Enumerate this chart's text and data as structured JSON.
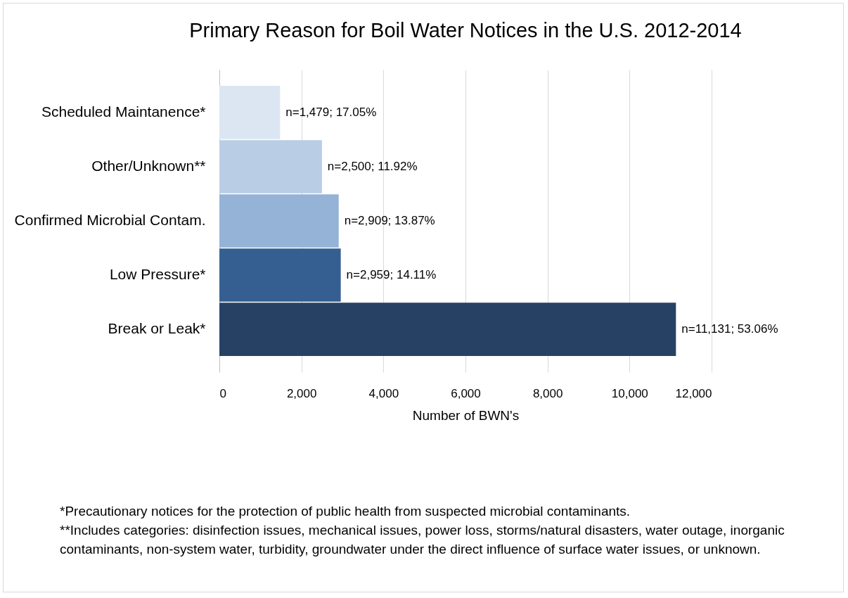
{
  "chart_data": {
    "type": "bar",
    "orientation": "horizontal",
    "title": "Primary Reason for Boil Water Notices in the U.S. 2012-2014",
    "xlabel": "Number of BWN's",
    "categories": [
      "Scheduled Maintanence*",
      "Other/Unknown**",
      "Confirmed Microbial Contam.",
      "Low Pressure*",
      "Break or Leak*"
    ],
    "values": [
      1479,
      2500,
      2909,
      2959,
      11131
    ],
    "colors": [
      "#dce6f2",
      "#b9cde5",
      "#95b3d7",
      "#355f91",
      "#264163"
    ],
    "value_labels": [
      "n=1,479; 17.05%",
      "n=2,500; 11.92%",
      "n=2,909; 13.87%",
      "n=2,959; 14.11%",
      "n=11,131; 53.06%"
    ],
    "xlim": [
      0,
      12000
    ],
    "xticks": [
      0,
      {
        "value": 2000,
        "label": "2,000"
      },
      {
        "value": 4000,
        "label": "4,000"
      },
      {
        "value": 6000,
        "label": "6,000"
      },
      {
        "value": 8000,
        "label": "8,000"
      },
      {
        "value": 10000,
        "label": "10,000"
      },
      {
        "value": 12000,
        "label": "12,000"
      }
    ],
    "grid": "x",
    "annotations": [
      "*Precautionary notices for the protection of public health from suspected microbial contaminants.",
      "**Includes categories: disinfection issues, mechanical issues, power loss, storms/natural disasters, water outage, inorganic contaminants, non-system water, turbidity, groundwater under the direct influence of surface water issues, or unknown."
    ]
  }
}
